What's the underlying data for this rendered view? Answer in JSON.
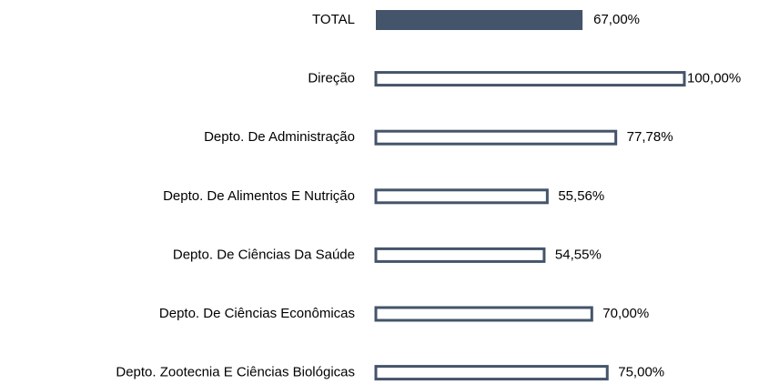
{
  "chart_data": {
    "type": "hbar",
    "categories": [
      "TOTAL",
      "Direção",
      "Depto. De Administração",
      "Depto. De Alimentos E Nutrição",
      "Depto. De Ciências Da Saúde",
      "Depto. De Ciências Econômicas",
      "Depto. Zootecnia E Ciências Biológicas"
    ],
    "values": [
      67,
      100,
      77.78,
      55.56,
      54.55,
      70,
      75
    ],
    "value_labels": [
      "67,00%",
      "100,00%",
      "77,78%",
      "55,56%",
      "54,55%",
      "70,00%",
      "75,00%"
    ],
    "colors": [
      "#44546a",
      "#ffffff",
      "#ffffff",
      "#ffffff",
      "#ffffff",
      "#ffffff",
      "#ffffff"
    ],
    "edge_color": "#44546a",
    "xlim": [
      0,
      100
    ]
  }
}
